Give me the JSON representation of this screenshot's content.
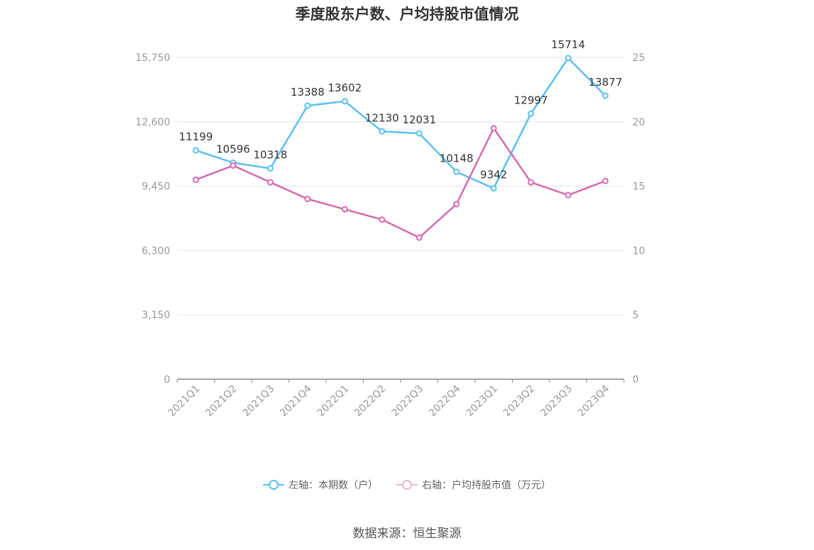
{
  "title": "季度股东户数、户均持股市值情况",
  "source": "数据来源：恒生聚源",
  "chart_data": {
    "type": "line",
    "categories": [
      "2021Q1",
      "2021Q2",
      "2021Q3",
      "2021Q4",
      "2022Q1",
      "2022Q2",
      "2022Q3",
      "2022Q4",
      "2023Q1",
      "2023Q2",
      "2023Q3",
      "2023Q4"
    ],
    "left_axis": {
      "ylim": [
        0,
        15750
      ],
      "ticks": [
        "0",
        "3,150",
        "6,300",
        "9,450",
        "12,600",
        "15,750"
      ],
      "tick_values": [
        0,
        3150,
        6300,
        9450,
        12600,
        15750
      ]
    },
    "right_axis": {
      "ylim": [
        0,
        25
      ],
      "ticks": [
        "0",
        "5",
        "10",
        "15",
        "20",
        "25"
      ],
      "tick_values": [
        0,
        5,
        10,
        15,
        20,
        25
      ]
    },
    "grid": true,
    "legend_position": "bottom",
    "series": [
      {
        "name": "左轴：本期数（户）",
        "axis": "left",
        "color": "#5bc0f0",
        "values": [
          11199,
          10596,
          10318,
          13388,
          13602,
          12130,
          12031,
          10148,
          9342,
          12997,
          15714,
          13877
        ],
        "labels": [
          "11199",
          "10596",
          "10318",
          "13388",
          "13602",
          "12130",
          "12031",
          "10148",
          "9342",
          "12997",
          "15714",
          "13877"
        ]
      },
      {
        "name": "右轴：户均持股市值（万元）",
        "axis": "right",
        "color": "#d46ab0",
        "values": [
          15.5,
          16.6,
          15.3,
          14.0,
          13.2,
          12.4,
          11.0,
          13.6,
          19.5,
          15.3,
          14.3,
          15.4
        ]
      }
    ]
  }
}
